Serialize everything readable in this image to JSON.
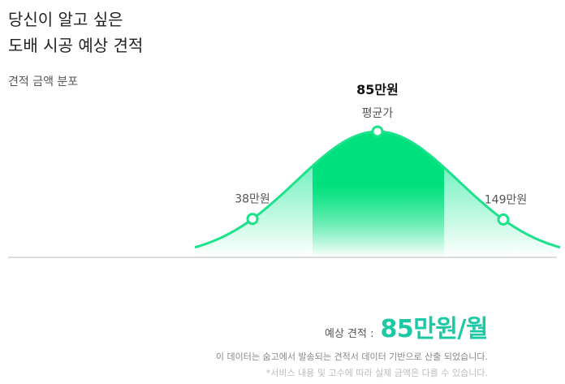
{
  "headline": {
    "line1": "당신이 알고 싶은",
    "line2": "도배 시공 예상 견적"
  },
  "section_label": "견적 금액 분포",
  "chart_data": {
    "type": "area",
    "title": "견적 금액 분포",
    "unit": "만원",
    "points": [
      {
        "value": 38,
        "label": "38만원",
        "marker": "low"
      },
      {
        "value": 85,
        "label": "85만원",
        "sublabel": "평균가",
        "marker": "mean"
      },
      {
        "value": 149,
        "label": "149만원",
        "marker": "high"
      }
    ],
    "grid": false,
    "colors": {
      "curve": "#1de28b",
      "fill": "#00e68a",
      "band": "#00e07c",
      "baseline": "#bbbbbb"
    }
  },
  "estimate": {
    "label": "예상 견적 :",
    "value": "85만원/월"
  },
  "notes": {
    "line1": "이 데이터는 숨고에서 발송되는 견적서 데이터 기반으로 산출 되었습니다.",
    "line2": "*서비스 내용 및 고수에 따라 실제 금액은 다를 수 있습니다."
  }
}
